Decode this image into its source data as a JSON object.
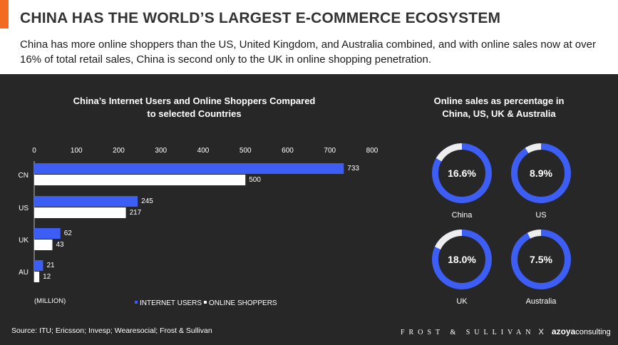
{
  "header": {
    "title": "CHINA HAS THE WORLD’S LARGEST E-COMMERCE ECOSYSTEM",
    "subtitle": "China has more online shoppers than the US, United Kingdom, and Australia combined, and with online sales now at over 16% of total retail sales, China is second only to the UK in online shopping penetration."
  },
  "colors": {
    "accent": "#f26b21",
    "panel": "#272727",
    "internet_users": "#3d5ef5",
    "online_shoppers": "#ffffff",
    "donut_track": "#eeeeee"
  },
  "chart_data": [
    {
      "type": "bar",
      "orientation": "horizontal",
      "title": "China’s Internet Users and Online Shoppers Compared to selected Countries",
      "categories": [
        "CN",
        "US",
        "UK",
        "AU"
      ],
      "series": [
        {
          "name": "INTERNET USERS",
          "values": [
            733,
            245,
            62,
            21
          ]
        },
        {
          "name": "ONLINE SHOPPERS",
          "values": [
            500,
            217,
            43,
            12
          ]
        }
      ],
      "unit_label": "(MILLION)",
      "xlim": [
        0,
        800
      ],
      "xticks": [
        "0",
        "100",
        "200",
        "300",
        "400",
        "500",
        "600",
        "700",
        "800"
      ],
      "xaxis_position": "top",
      "legend_position": "bottom",
      "grid": false
    },
    {
      "type": "pie",
      "variant": "donut",
      "title": "Online sales as percentage in China, US, UK & Australia",
      "items": [
        {
          "label": "China",
          "value": 16.6,
          "display": "16.6%"
        },
        {
          "label": "US",
          "value": 8.9,
          "display": "8.9%"
        },
        {
          "label": "UK",
          "value": 18.0,
          "display": "18.0%"
        },
        {
          "label": "Australia",
          "value": 7.5,
          "display": "7.5%"
        }
      ]
    }
  ],
  "footer": {
    "source": "Source: ITU; Ericsson; Invesp; Wearesocial; Frost & Sullivan",
    "brand_fs": "FROST & SULLIVAN",
    "brand_x": "X",
    "brand_azoya": "azoya",
    "brand_consulting": "consulting"
  }
}
